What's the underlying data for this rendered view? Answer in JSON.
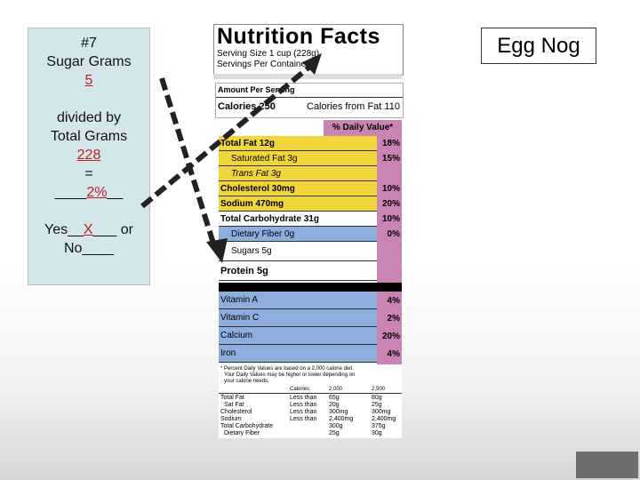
{
  "worksheet": {
    "number": "#7",
    "line1": "Sugar Grams",
    "sugar_grams": "5",
    "divided_by": "divided by",
    "line2": "Total Grams",
    "total_grams": "228",
    "equals": "=",
    "percent_prefix": "____",
    "percent": "2%",
    "percent_suffix": "__",
    "yes_prefix": "Yes__",
    "yes_mark": "X",
    "yes_suffix": "___ or",
    "no_line": "No____"
  },
  "title": "Egg Nog",
  "label": {
    "heading": "Nutrition Facts",
    "serving_size": "Serving Size 1 cup (228g)",
    "servings_per_container": "Servings Per Container  2",
    "amount_per_serving": "Amount Per Serving",
    "calories": "Calories 250",
    "calories_from_fat": "Calories from Fat 110",
    "daily_value_header": "% Daily Value*",
    "nutrients": [
      {
        "name": "Total Fat 12g",
        "pct": "18%"
      },
      {
        "name": "Saturated Fat 3g",
        "pct": "15%"
      },
      {
        "name": "Trans Fat 3g",
        "pct": ""
      },
      {
        "name": "Cholesterol 30mg",
        "pct": "10%"
      },
      {
        "name": "Sodium 470mg",
        "pct": "20%"
      },
      {
        "name": "Total Carbohydrate 31g",
        "pct": "10%"
      },
      {
        "name": "Dietary Fiber 0g",
        "pct": "0%"
      },
      {
        "name": "Sugars 5g",
        "pct": ""
      },
      {
        "name": "Protein 5g",
        "pct": ""
      }
    ],
    "vitamins": [
      {
        "name": "Vitamin A",
        "pct": "4%"
      },
      {
        "name": "Vitamin C",
        "pct": "2%"
      },
      {
        "name": "Calcium",
        "pct": "20%"
      },
      {
        "name": "Iron",
        "pct": "4%"
      }
    ],
    "footnote1": "* Percent Daily Values are based on a 2,000 calorie diet.",
    "footnote2": "Your Daily Values may be higher or lower depending on",
    "footnote3": "your calorie needs.",
    "table_head": [
      "Calories:",
      "2,000",
      "2,500"
    ],
    "table_rows": [
      [
        "Total Fat",
        "Less than",
        "65g",
        "80g"
      ],
      [
        "Sat Fat",
        "Less than",
        "20g",
        "25g"
      ],
      [
        "Cholesterol",
        "Less than",
        "300mg",
        "300mg"
      ],
      [
        "Sodium",
        "Less than",
        "2,400mg",
        "2,400mg"
      ],
      [
        "Total Carbohydrate",
        "",
        "300g",
        "375g"
      ],
      [
        "Dietary Fiber",
        "",
        "25g",
        "30g"
      ]
    ]
  },
  "colors": {
    "yellow": "#f1d63b",
    "blue": "#8eaede",
    "pink": "#c984b4",
    "panel": "#d3e6ec"
  }
}
